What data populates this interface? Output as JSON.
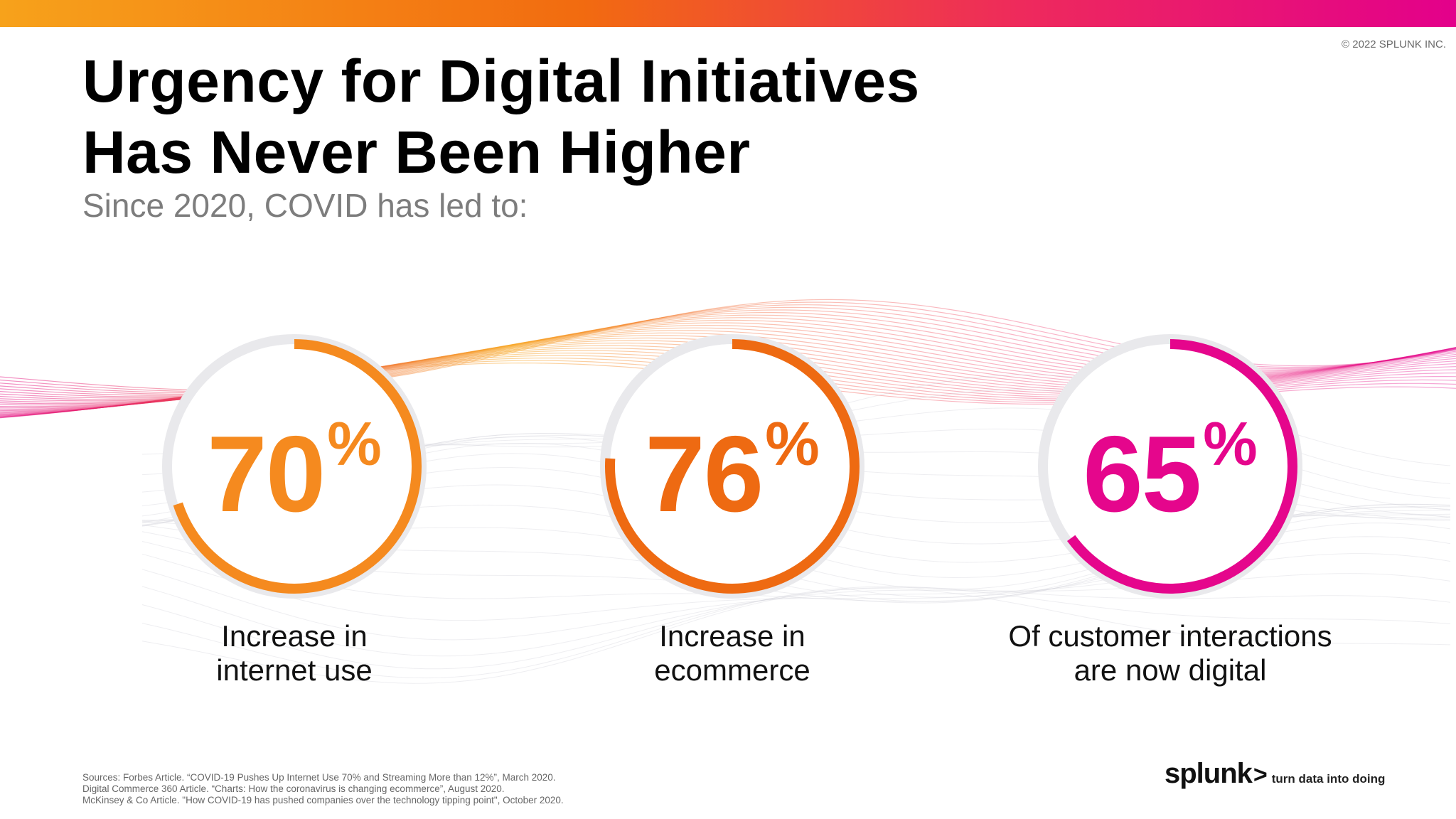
{
  "header": {
    "copyright": "© 2022 SPLUNK INC.",
    "title_lines": [
      "Urgency for Digital Initiatives",
      "Has Never Been Higher"
    ],
    "subtitle": "Since 2020, COVID has led to:"
  },
  "stats": [
    {
      "number": "70",
      "percent_sign": "%",
      "fill_fraction": 0.7,
      "color": "#f58a1f",
      "label_lines": [
        "Increase in",
        "internet use"
      ]
    },
    {
      "number": "76",
      "percent_sign": "%",
      "fill_fraction": 0.76,
      "color": "#ee6a12",
      "label_lines": [
        "Increase in",
        "ecommerce"
      ]
    },
    {
      "number": "65",
      "percent_sign": "%",
      "fill_fraction": 0.65,
      "color": "#e5068c",
      "label_lines": [
        "Of customer interactions",
        "are now digital"
      ]
    }
  ],
  "sources": [
    "Sources: Forbes Article. “COVID-19 Pushes Up Internet Use 70% and Streaming More than 12%”, March 2020.",
    "Digital Commerce 360 Article. “Charts: How the coronavirus is changing ecommerce”, August 2020.",
    "McKinsey & Co Article. \"How COVID-19 has pushed companies over the technology tipping point\", October 2020."
  ],
  "brand": {
    "logo": "splunk",
    "chevron": ">",
    "tagline": "turn data into doing"
  },
  "colors": {
    "topbar_start": "#f7a21b",
    "topbar_end": "#e3008b"
  }
}
